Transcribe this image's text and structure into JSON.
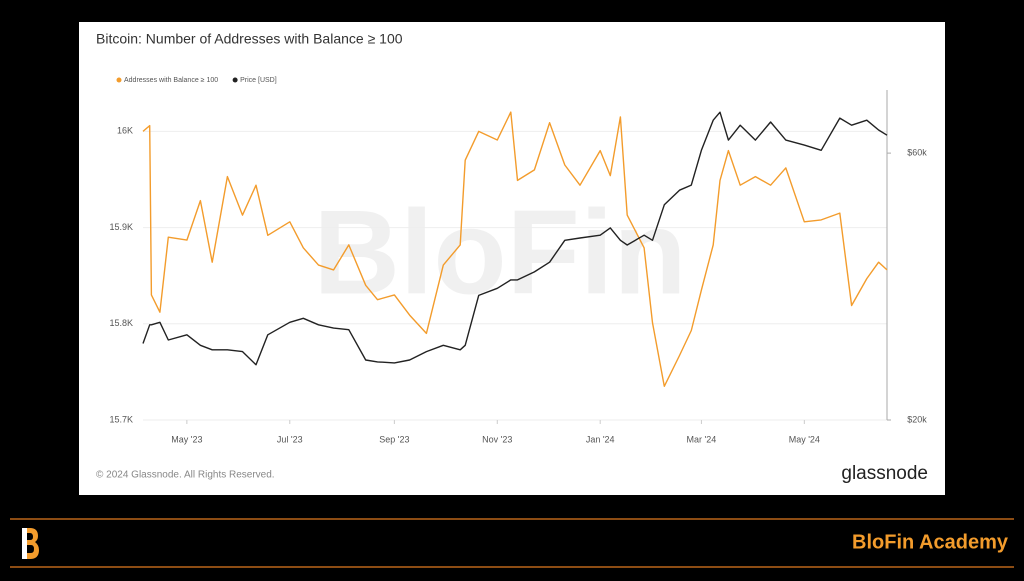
{
  "chart_data": {
    "type": "line",
    "title": "Bitcoin: Number of Addresses with Balance ≥ 100",
    "x": [
      "2023-04-05",
      "2023-04-09",
      "2023-04-10",
      "2023-04-15",
      "2023-04-20",
      "2023-05-01",
      "2023-05-09",
      "2023-05-16",
      "2023-05-25",
      "2023-06-03",
      "2023-06-11",
      "2023-06-18",
      "2023-07-01",
      "2023-07-09",
      "2023-07-18",
      "2023-07-27",
      "2023-08-05",
      "2023-08-15",
      "2023-08-22",
      "2023-09-01",
      "2023-09-10",
      "2023-09-20",
      "2023-09-30",
      "2023-10-10",
      "2023-10-13",
      "2023-10-21",
      "2023-11-01",
      "2023-11-09",
      "2023-11-13",
      "2023-11-23",
      "2023-12-02",
      "2023-12-11",
      "2023-12-20",
      "2024-01-01",
      "2024-01-07",
      "2024-01-13",
      "2024-01-17",
      "2024-01-27",
      "2024-02-01",
      "2024-02-08",
      "2024-02-17",
      "2024-02-24",
      "2024-03-01",
      "2024-03-08",
      "2024-03-12",
      "2024-03-17",
      "2024-03-24",
      "2024-04-02",
      "2024-04-11",
      "2024-04-20",
      "2024-05-01",
      "2024-05-11",
      "2024-05-22",
      "2024-05-29",
      "2024-06-07",
      "2024-06-14",
      "2024-06-19"
    ],
    "series": [
      {
        "name": "Addresses with Balance ≥ 100",
        "color": "#f39c2c",
        "axis": "y",
        "values": [
          16000,
          16006,
          15830,
          15812,
          15890,
          15887,
          15928,
          15864,
          15953,
          15913,
          15944,
          15892,
          15906,
          15879,
          15861,
          15856,
          15882,
          15840,
          15825,
          15830,
          15809,
          15790,
          15861,
          15882,
          15970,
          16000,
          15991,
          16020,
          15949,
          15960,
          16009,
          15965,
          15944,
          15980,
          15954,
          16015,
          15913,
          15879,
          15801,
          15735,
          15767,
          15793,
          15835,
          15882,
          15949,
          15980,
          15944,
          15953,
          15944,
          15962,
          15906,
          15908,
          15915,
          15819,
          15847,
          15864,
          15856
        ]
      },
      {
        "name": "Price [USD]",
        "color": "#222222",
        "axis": "y2",
        "values": [
          27400,
          29600,
          29600,
          29900,
          27800,
          28400,
          27200,
          26700,
          26700,
          26500,
          25100,
          28400,
          29900,
          30400,
          29600,
          29200,
          29000,
          25600,
          25400,
          25300,
          25600,
          26500,
          27200,
          26700,
          27200,
          33400,
          34400,
          35600,
          35600,
          36800,
          38300,
          41900,
          42300,
          42800,
          44100,
          41900,
          41100,
          42800,
          41900,
          48500,
          51500,
          52600,
          60700,
          68700,
          71000,
          63300,
          67300,
          63300,
          68200,
          63300,
          62000,
          60700,
          69300,
          67300,
          68700,
          66000,
          64600
        ]
      }
    ],
    "xlim": [
      "2023-04-05",
      "2024-06-19"
    ],
    "xticks": [
      {
        "value": "2023-05-01",
        "label": "May '23"
      },
      {
        "value": "2023-07-01",
        "label": "Jul '23"
      },
      {
        "value": "2023-09-01",
        "label": "Sep '23"
      },
      {
        "value": "2023-11-01",
        "label": "Nov '23"
      },
      {
        "value": "2024-01-01",
        "label": "Jan '24"
      },
      {
        "value": "2024-03-01",
        "label": "Mar '24"
      },
      {
        "value": "2024-05-01",
        "label": "May '24"
      }
    ],
    "ylim": [
      15700,
      16043
    ],
    "yticks": [
      {
        "value": 15700,
        "label": "15.7K"
      },
      {
        "value": 15800,
        "label": "15.8K"
      },
      {
        "value": 15900,
        "label": "15.9K"
      },
      {
        "value": 16000,
        "label": "16K"
      }
    ],
    "y2lim": [
      20000,
      77800
    ],
    "y2ticks": [
      {
        "value": 20000,
        "label": "$20k"
      },
      {
        "value": 60000,
        "label": "$60k"
      }
    ],
    "y2log": true,
    "grid": true,
    "legend": "top-left"
  },
  "footer": {
    "copyright": "© 2024 Glassnode. All Rights Reserved.",
    "brand": "glassnode"
  },
  "watermark": "BloFin",
  "banner": {
    "title": "BloFin Academy"
  }
}
